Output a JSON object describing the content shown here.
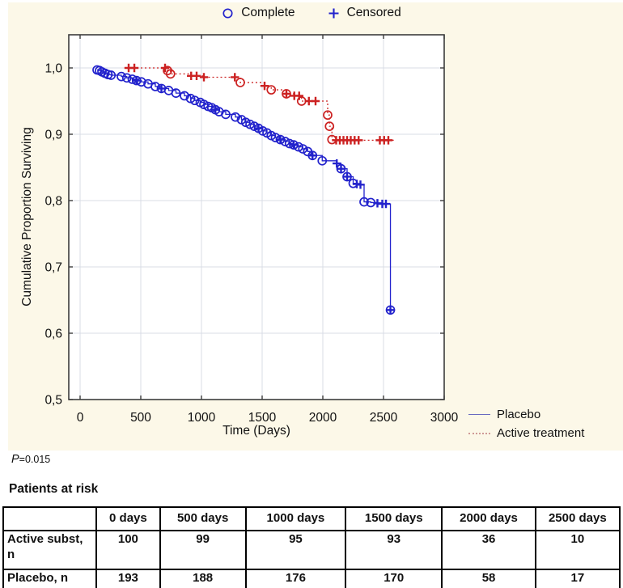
{
  "colors": {
    "background_panel": "#fcf8e8",
    "placebo_blue": "#2222cc",
    "active_red": "#cc2222",
    "grid": "#d9dce5",
    "frame": "#3c3c3c"
  },
  "marker_legend": {
    "complete_label": "Complete",
    "censored_label": "Censored"
  },
  "series_legend": {
    "placebo_label": "Placebo",
    "active_label": "Active treatment"
  },
  "stats": {
    "p_label": "P",
    "p_value": "=0.015"
  },
  "risk_table": {
    "title": "Patients at risk",
    "headers": [
      "",
      "0 days",
      "500 days",
      "1000 days",
      "1500 days",
      "2000 days",
      "2500 days"
    ],
    "rows": [
      {
        "label": "Active subst, n",
        "values": [
          "100",
          "99",
          "95",
          "93",
          "36",
          "10"
        ]
      },
      {
        "label": "Placebo, n",
        "values": [
          "193",
          "188",
          "176",
          "170",
          "58",
          "17"
        ]
      }
    ]
  },
  "chart_data": {
    "type": "line",
    "subtype": "kaplan-meier-step",
    "title": "",
    "xlabel": "Time (Days)",
    "ylabel": "Cumulative Proportion Surviving",
    "xlim": [
      0,
      3000
    ],
    "ylim": [
      0.5,
      1.05
    ],
    "xticks": [
      0,
      500,
      1000,
      1500,
      2000,
      2500,
      3000
    ],
    "xtick_labels": [
      "0",
      "500",
      "1000",
      "1500",
      "2000",
      "2500",
      "3000"
    ],
    "yticks": [
      0.5,
      0.6,
      0.7,
      0.8,
      0.9,
      1.0
    ],
    "ytick_labels": [
      "0,5",
      "0,6",
      "0,7",
      "0,8",
      "0,9",
      "1,0"
    ],
    "grid": true,
    "legend_position": "right-bottom",
    "marker_meaning": {
      "circle": "Complete",
      "plus": "Censored",
      "circleplus": "complete+censored overlap"
    },
    "series": [
      {
        "name": "Placebo",
        "color": "#2222cc",
        "line": "solid",
        "points": [
          [
            140,
            0.997,
            "c"
          ],
          [
            160,
            0.996,
            "c"
          ],
          [
            180,
            0.994,
            "c"
          ],
          [
            205,
            0.992,
            "c"
          ],
          [
            230,
            0.99,
            "c"
          ],
          [
            255,
            0.989,
            "c"
          ],
          [
            340,
            0.987,
            "c"
          ],
          [
            385,
            0.985,
            "c"
          ],
          [
            430,
            0.983,
            "c"
          ],
          [
            465,
            0.981,
            "cp"
          ],
          [
            505,
            0.979,
            "c"
          ],
          [
            560,
            0.976,
            "c"
          ],
          [
            620,
            0.972,
            "c"
          ],
          [
            670,
            0.969,
            "cp"
          ],
          [
            730,
            0.966,
            "c"
          ],
          [
            790,
            0.962,
            "c"
          ],
          [
            860,
            0.958,
            "c"
          ],
          [
            910,
            0.954,
            "c"
          ],
          [
            945,
            0.951,
            "c"
          ],
          [
            990,
            0.948,
            "c"
          ],
          [
            1020,
            0.945,
            "c"
          ],
          [
            1055,
            0.942,
            "c"
          ],
          [
            1085,
            0.94,
            "c"
          ],
          [
            1115,
            0.937,
            "cp"
          ],
          [
            1145,
            0.934,
            "c"
          ],
          [
            1200,
            0.93,
            "c"
          ],
          [
            1280,
            0.926,
            "c"
          ],
          [
            1330,
            0.922,
            "c"
          ],
          [
            1365,
            0.918,
            "c"
          ],
          [
            1400,
            0.915,
            "c"
          ],
          [
            1435,
            0.912,
            "c"
          ],
          [
            1470,
            0.909,
            "cp"
          ],
          [
            1505,
            0.905,
            "c"
          ],
          [
            1540,
            0.902,
            "c"
          ],
          [
            1575,
            0.898,
            "c"
          ],
          [
            1610,
            0.895,
            "c"
          ],
          [
            1650,
            0.892,
            "cp"
          ],
          [
            1690,
            0.889,
            "c"
          ],
          [
            1725,
            0.886,
            "c"
          ],
          [
            1760,
            0.884,
            "cp"
          ],
          [
            1800,
            0.881,
            "c"
          ],
          [
            1835,
            0.878,
            "c"
          ],
          [
            1875,
            0.874,
            "c"
          ],
          [
            1915,
            0.868,
            "cp"
          ],
          [
            1995,
            0.86,
            "c"
          ],
          [
            2115,
            0.856,
            "p"
          ],
          [
            2150,
            0.848,
            "cp"
          ],
          [
            2200,
            0.836,
            "cp"
          ],
          [
            2250,
            0.826,
            "c"
          ],
          [
            2280,
            0.825,
            "p"
          ],
          [
            2310,
            0.824,
            "p"
          ],
          [
            2340,
            0.798,
            "c"
          ],
          [
            2395,
            0.797,
            "c"
          ],
          [
            2450,
            0.796,
            "p"
          ],
          [
            2490,
            0.795,
            "p"
          ],
          [
            2520,
            0.795,
            "p"
          ],
          [
            2557,
            0.795,
            "n"
          ],
          [
            2557,
            0.635,
            "cp"
          ]
        ]
      },
      {
        "name": "Active treatment",
        "color": "#cc2222",
        "line": "dotted",
        "points": [
          [
            400,
            1.0,
            "p"
          ],
          [
            447,
            1.0,
            "p"
          ],
          [
            700,
            1.0,
            "p"
          ],
          [
            720,
            0.996,
            "c"
          ],
          [
            745,
            0.991,
            "c"
          ],
          [
            915,
            0.988,
            "p"
          ],
          [
            960,
            0.988,
            "p"
          ],
          [
            1020,
            0.986,
            "p"
          ],
          [
            1275,
            0.986,
            "p"
          ],
          [
            1320,
            0.978,
            "c"
          ],
          [
            1520,
            0.973,
            "p"
          ],
          [
            1575,
            0.967,
            "c"
          ],
          [
            1700,
            0.961,
            "cp"
          ],
          [
            1765,
            0.958,
            "p"
          ],
          [
            1805,
            0.958,
            "p"
          ],
          [
            1825,
            0.95,
            "c"
          ],
          [
            1885,
            0.95,
            "p"
          ],
          [
            1940,
            0.95,
            "p"
          ],
          [
            2040,
            0.929,
            "c"
          ],
          [
            2055,
            0.912,
            "c"
          ],
          [
            2075,
            0.892,
            "c"
          ],
          [
            2110,
            0.891,
            "p"
          ],
          [
            2140,
            0.891,
            "p"
          ],
          [
            2170,
            0.891,
            "p"
          ],
          [
            2200,
            0.891,
            "p"
          ],
          [
            2230,
            0.891,
            "p"
          ],
          [
            2262,
            0.891,
            "p"
          ],
          [
            2295,
            0.891,
            "p"
          ],
          [
            2470,
            0.891,
            "p"
          ],
          [
            2505,
            0.891,
            "p"
          ],
          [
            2540,
            0.891,
            "p"
          ],
          [
            2585,
            0.891,
            "n"
          ]
        ]
      }
    ]
  }
}
